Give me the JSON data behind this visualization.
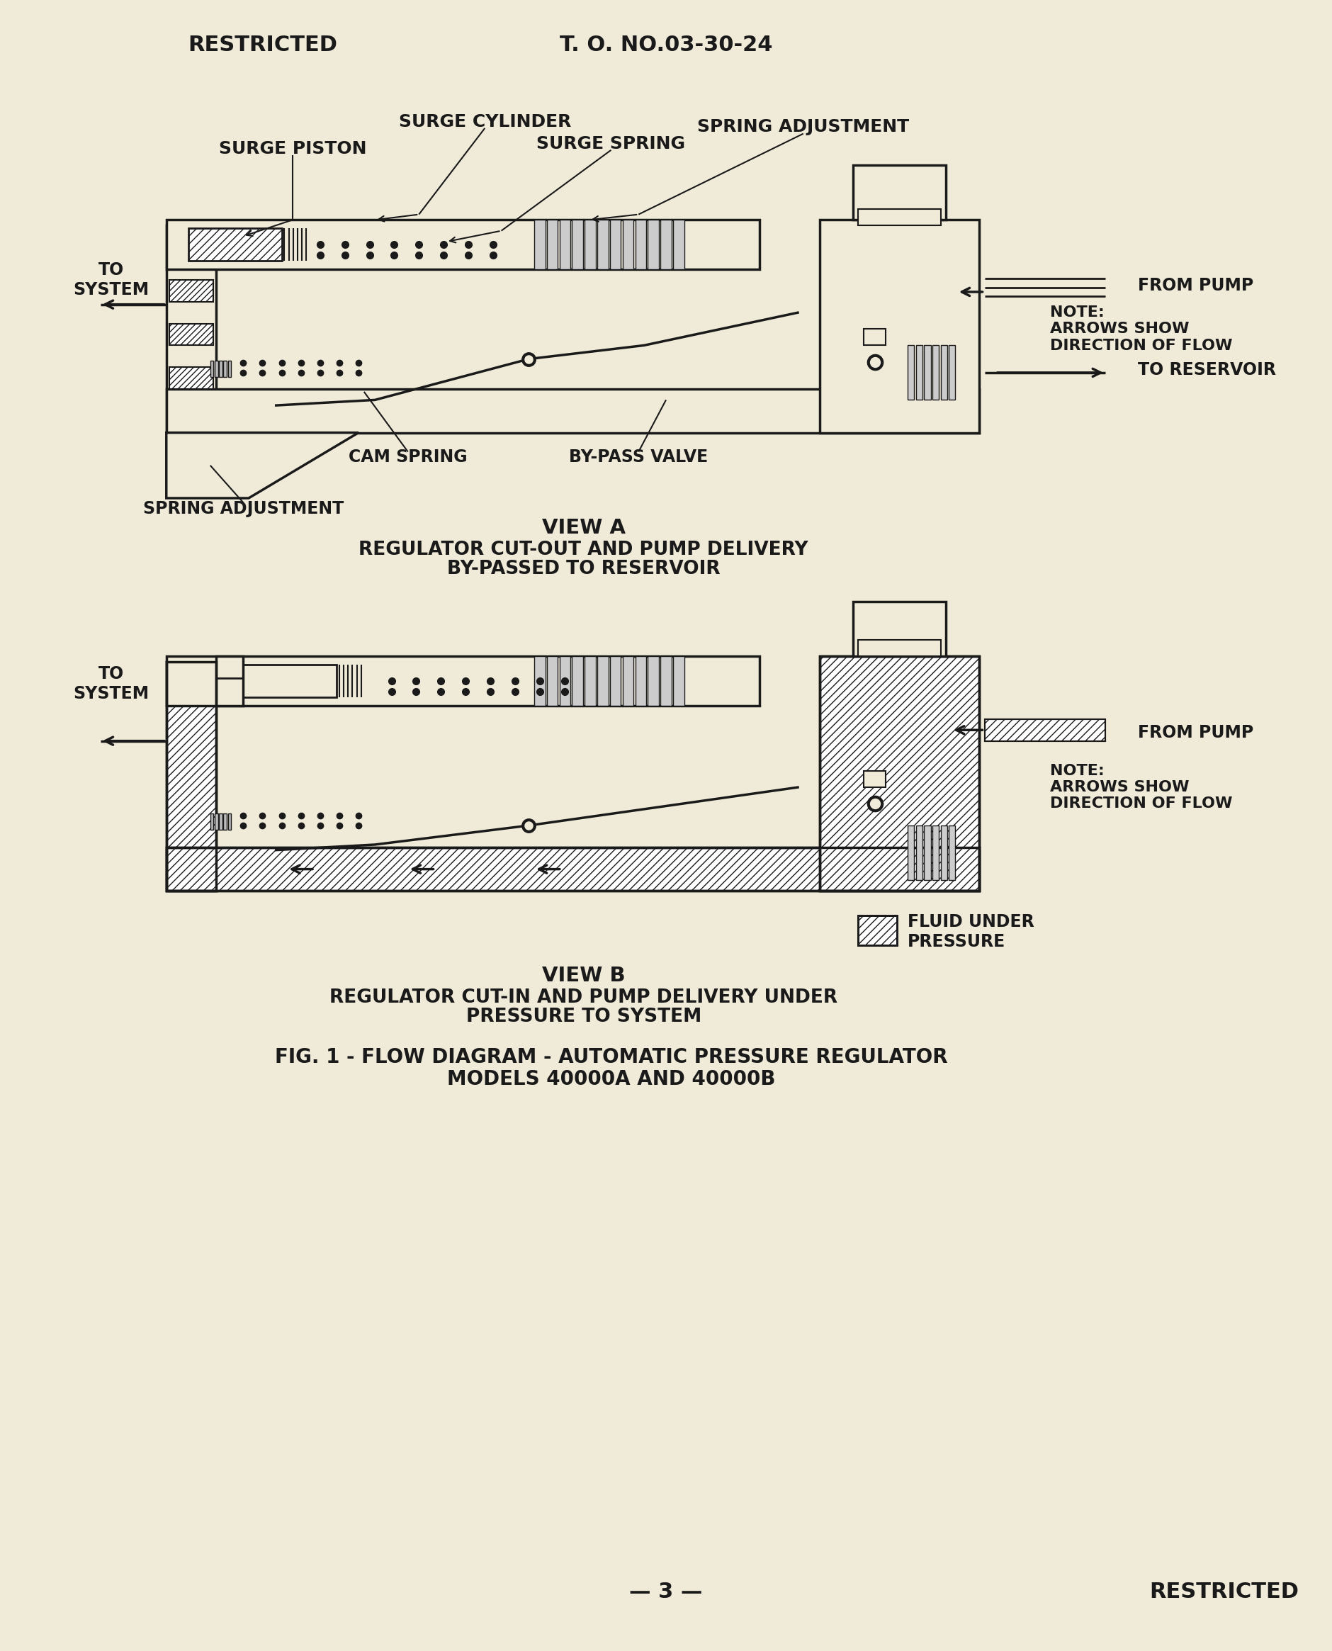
{
  "bg_color": "#f0ead8",
  "line_color": "#1a1a1a",
  "header_left": "RESTRICTED",
  "header_center": "T. O. NO.03-30-24",
  "footer_center": "— 3 —",
  "footer_right": "RESTRICTED",
  "view_a_title": "VIEW A",
  "view_a_sub1": "REGULATOR CUT-OUT AND PUMP DELIVERY",
  "view_a_sub2": "BY-PASSED TO RESERVOIR",
  "view_b_title": "VIEW B",
  "view_b_sub1": "REGULATOR CUT-IN AND PUMP DELIVERY UNDER",
  "view_b_sub2": "PRESSURE TO SYSTEM",
  "fig1": "FIG. 1 - FLOW DIAGRAM - AUTOMATIC PRESSURE REGULATOR",
  "fig2": "MODELS 40000A AND 40000B",
  "lbl_surge_piston": "SURGE PISTON",
  "lbl_surge_cylinder": "SURGE CYLINDER",
  "lbl_surge_spring": "SURGE SPRING",
  "lbl_spring_adj": "SPRING ADJUSTMENT",
  "lbl_to_system": "TO\nSYSTEM",
  "lbl_from_pump": "FROM PUMP",
  "lbl_note_a": "NOTE:\nARROWS SHOW\nDIRECTION OF FLOW",
  "lbl_to_reservoir": "TO RESERVOIR",
  "lbl_cam_spring": "CAM SPRING",
  "lbl_bypass_valve": "BY-PASS VALVE",
  "lbl_spring_adj2": "SPRING ADJUSTMENT",
  "lbl_note_b": "NOTE:\nARROWS SHOW\nDIRECTION OF FLOW",
  "lbl_from_pump_b": "FROM PUMP",
  "lbl_fluid": "FLUID UNDER\nPRESSURE"
}
